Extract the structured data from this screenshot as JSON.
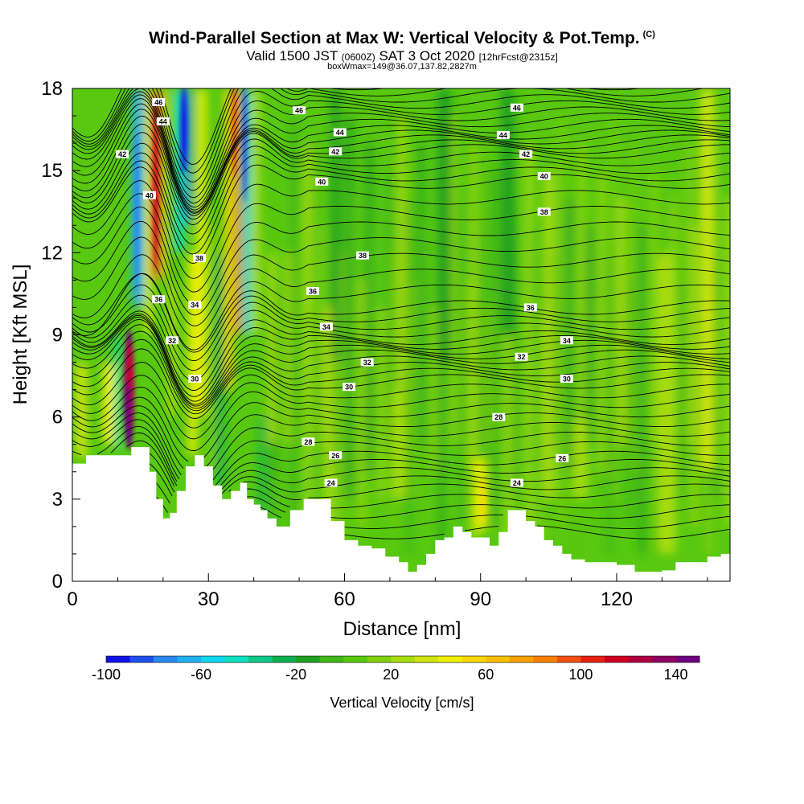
{
  "header": {
    "title": "Wind-Parallel Section at Max W: Vertical Velocity & Pot.Temp.",
    "copyright": "(C)",
    "valid_prefix": "Valid 1500 JST",
    "valid_utc": "(0600Z)",
    "valid_date": "SAT 3 Oct 2020",
    "forecast": "[12hrFcst@2315z]",
    "box_info": "boxWmax=149@36.07,137.82,2827m"
  },
  "colors": {
    "background_field": "#55c010",
    "terrain": "#ffffff",
    "contour": "#000000"
  },
  "chart_data": {
    "type": "heatmap",
    "title": "Wind-Parallel Section at Max W: Vertical Velocity & Pot.Temp.",
    "xlabel": "Distance [nm]",
    "ylabel": "Height [Kft MSL]",
    "xlim": [
      0,
      145
    ],
    "ylim": [
      0,
      18
    ],
    "xticks": [
      0,
      30,
      60,
      90,
      120
    ],
    "yticks": [
      0,
      3,
      6,
      9,
      12,
      15,
      18
    ],
    "colorbar": {
      "label": "Vertical Velocity [cm/s]",
      "ticks": [
        -100,
        -60,
        -20,
        20,
        60,
        100,
        140
      ],
      "levels": [
        -100,
        -90,
        -80,
        -70,
        -60,
        -50,
        -40,
        -30,
        -20,
        -10,
        0,
        10,
        20,
        30,
        40,
        50,
        60,
        70,
        80,
        90,
        100,
        110,
        120,
        130,
        140,
        150
      ],
      "colors": [
        "#1010e8",
        "#1e50f0",
        "#2888ee",
        "#20b0f0",
        "#10d8f0",
        "#10e0c0",
        "#10c888",
        "#10b050",
        "#20a020",
        "#40b818",
        "#58c810",
        "#80d010",
        "#a8dc10",
        "#d0e410",
        "#f0f000",
        "#f8d800",
        "#f8c000",
        "#f8a000",
        "#f88000",
        "#f05010",
        "#e82010",
        "#d00020",
        "#b00040",
        "#900060",
        "#700080"
      ]
    },
    "terrain_profile": {
      "x": [
        0,
        3,
        8,
        13,
        15,
        17,
        18.5,
        20,
        21.5,
        23,
        25,
        27,
        29,
        31,
        33,
        35,
        37,
        38.5,
        40,
        41.5,
        43,
        45,
        48,
        51,
        54,
        57,
        60,
        63,
        66,
        69,
        72,
        74,
        76,
        78,
        80,
        82,
        84,
        86,
        88,
        90,
        92,
        94,
        96,
        98,
        100,
        102,
        104,
        106,
        108,
        110,
        113,
        116,
        120,
        124,
        127,
        130,
        133,
        135,
        140,
        143,
        145
      ],
      "y": [
        4.3,
        4.6,
        4.6,
        4.9,
        4.9,
        4.0,
        3.0,
        2.3,
        2.5,
        3.3,
        4.2,
        4.6,
        4.2,
        3.5,
        3.0,
        3.3,
        3.6,
        3.0,
        2.8,
        2.6,
        2.3,
        2.0,
        2.6,
        3.0,
        3.0,
        2.2,
        1.5,
        1.3,
        1.2,
        0.9,
        0.7,
        0.35,
        0.6,
        1.0,
        1.5,
        1.6,
        2.0,
        1.8,
        1.6,
        1.6,
        1.3,
        1.8,
        2.6,
        2.6,
        2.2,
        2.0,
        1.5,
        1.3,
        1.0,
        0.8,
        0.7,
        0.7,
        0.6,
        0.35,
        0.35,
        0.4,
        0.7,
        0.7,
        0.9,
        1.0,
        1.0
      ]
    },
    "updraft_max": {
      "x": 12.5,
      "y": 7.0,
      "value": 149
    },
    "theta_contours": [
      {
        "level": 24,
        "label": "24",
        "label_x": 57,
        "label_y": 3.6
      },
      {
        "level": 24,
        "label": "24",
        "label_x": 98,
        "label_y": 3.6
      },
      {
        "level": 26,
        "label": "26",
        "label_x": 58,
        "label_y": 4.6
      },
      {
        "level": 26,
        "label": "26",
        "label_x": 108,
        "label_y": 4.5
      },
      {
        "level": 28,
        "label": "28",
        "label_x": 52,
        "label_y": 5.1
      },
      {
        "level": 28,
        "label": "28",
        "label_x": 94,
        "label_y": 6.0
      },
      {
        "level": 30,
        "label": "30",
        "label_x": 27,
        "label_y": 7.4
      },
      {
        "level": 30,
        "label": "30",
        "label_x": 61,
        "label_y": 7.1
      },
      {
        "level": 30,
        "label": "30",
        "label_x": 109,
        "label_y": 7.4
      },
      {
        "level": 32,
        "label": "32",
        "label_x": 22,
        "label_y": 8.8
      },
      {
        "level": 32,
        "label": "32",
        "label_x": 65,
        "label_y": 8.0
      },
      {
        "level": 32,
        "label": "32",
        "label_x": 99,
        "label_y": 8.2
      },
      {
        "level": 34,
        "label": "34",
        "label_x": 27,
        "label_y": 10.1
      },
      {
        "level": 34,
        "label": "34",
        "label_x": 56,
        "label_y": 9.3
      },
      {
        "level": 34,
        "label": "34",
        "label_x": 109,
        "label_y": 8.8
      },
      {
        "level": 36,
        "label": "36",
        "label_x": 19,
        "label_y": 10.3
      },
      {
        "level": 36,
        "label": "36",
        "label_x": 53,
        "label_y": 10.6
      },
      {
        "level": 36,
        "label": "36",
        "label_x": 101,
        "label_y": 10.0
      },
      {
        "level": 38,
        "label": "38",
        "label_x": 28,
        "label_y": 11.8
      },
      {
        "level": 38,
        "label": "38",
        "label_x": 64,
        "label_y": 11.9
      },
      {
        "level": 38,
        "label": "38",
        "label_x": 104,
        "label_y": 13.5
      },
      {
        "level": 40,
        "label": "40",
        "label_x": 17,
        "label_y": 14.1
      },
      {
        "level": 40,
        "label": "40",
        "label_x": 55,
        "label_y": 14.6
      },
      {
        "level": 40,
        "label": "40",
        "label_x": 104,
        "label_y": 14.8
      },
      {
        "level": 42,
        "label": "42",
        "label_x": 11,
        "label_y": 15.6
      },
      {
        "level": 42,
        "label": "42",
        "label_x": 58,
        "label_y": 15.7
      },
      {
        "level": 42,
        "label": "42",
        "label_x": 100,
        "label_y": 15.6
      },
      {
        "level": 44,
        "label": "44",
        "label_x": 20,
        "label_y": 16.8
      },
      {
        "level": 44,
        "label": "44",
        "label_x": 59,
        "label_y": 16.4
      },
      {
        "level": 44,
        "label": "44",
        "label_x": 95,
        "label_y": 16.3
      },
      {
        "level": 46,
        "label": "46",
        "label_x": 19,
        "label_y": 17.5
      },
      {
        "level": 46,
        "label": "46",
        "label_x": 50,
        "label_y": 17.2
      },
      {
        "level": 46,
        "label": "46",
        "label_x": 98,
        "label_y": 17.3
      }
    ]
  }
}
